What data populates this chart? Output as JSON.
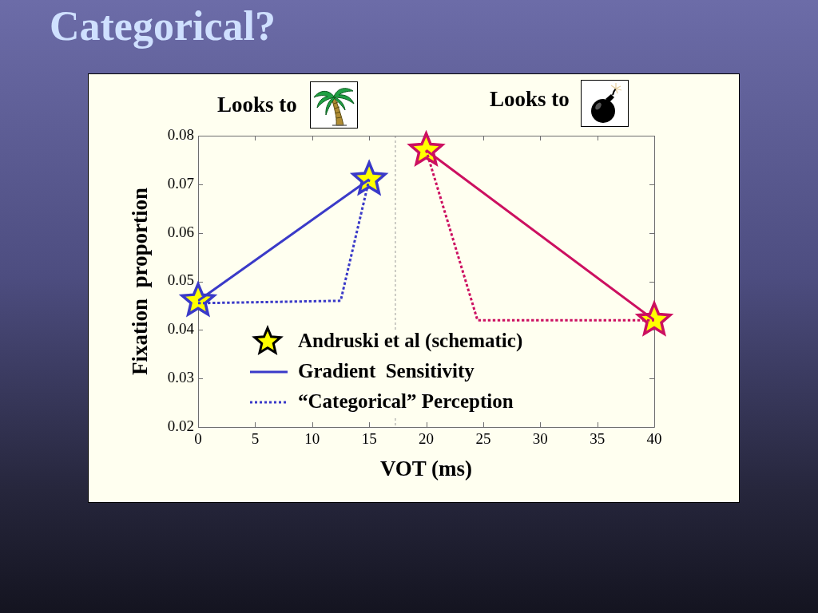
{
  "chart_data": {
    "type": "line",
    "title": "Categorical?",
    "xlabel": "VOT (ms)",
    "ylabel": "Fixation  proportion",
    "annotations": [
      "Looks to",
      "Looks to"
    ],
    "xlim": [
      0,
      40
    ],
    "xticks": [
      0,
      5,
      10,
      15,
      20,
      25,
      30,
      35,
      40
    ],
    "ylim": [
      0.02,
      0.08
    ],
    "yticks": [
      0.02,
      0.03,
      0.04,
      0.05,
      0.06,
      0.07,
      0.08
    ],
    "legend": "bottom left",
    "ref_lines": [
      {
        "axis": "x",
        "value": 17.3,
        "color": "#999999",
        "line_style": "dotted"
      }
    ],
    "series": [
      {
        "name": "Andruski et al (schematic)",
        "type": "scatter",
        "marker": "star",
        "color": "#ffff00",
        "x": [
          0,
          15,
          20,
          40
        ],
        "values": [
          0.046,
          0.071,
          0.077,
          0.042
        ]
      },
      {
        "name": "Gradient  Sensitivity",
        "type": "line",
        "line_style": "solid",
        "color": "#3a3ac8",
        "x": [
          0,
          15
        ],
        "values": [
          0.046,
          0.071
        ]
      },
      {
        "type": "line",
        "line_style": "solid",
        "color": "#cc1060",
        "x": [
          20,
          40
        ],
        "values": [
          0.077,
          0.042
        ]
      },
      {
        "name": "“Categorical” Perception",
        "type": "line",
        "line_style": "dotted",
        "color": "#3a3ac8",
        "x": [
          0,
          12.5,
          15
        ],
        "values": [
          0.0455,
          0.046,
          0.071
        ]
      },
      {
        "type": "line",
        "line_style": "dotted",
        "color": "#cc1060",
        "x": [
          20,
          24.5,
          40
        ],
        "values": [
          0.077,
          0.042,
          0.042
        ]
      }
    ]
  }
}
